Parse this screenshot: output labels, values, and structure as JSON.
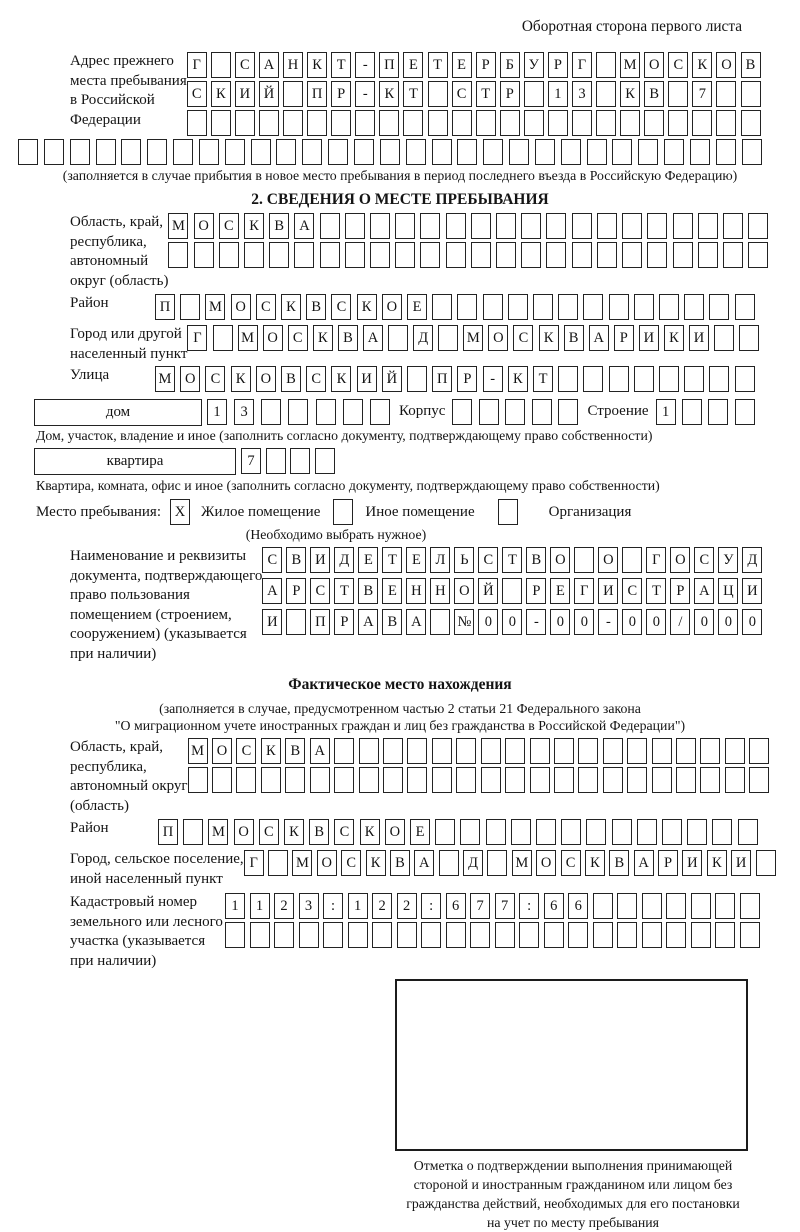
{
  "page": {
    "side_note": "Оборотная сторона первого листа"
  },
  "prev_address": {
    "label": "Адрес прежнего\nместа пребывания\nв Российской\nФедерации",
    "rows": [
      {
        "text": "Г САНКТ-ПЕТЕРБУРГ МОСКОВ",
        "len": 24
      },
      {
        "text": "СКИЙ ПР-КТ СТР 13 КВ 7",
        "len": 24
      },
      {
        "text": "",
        "len": 24
      },
      {
        "text": "",
        "len": 29
      }
    ],
    "note": "(заполняется в случае прибытия в новое место пребывания в период последнего въезда в Российскую Федерацию)"
  },
  "section2": {
    "title": "2. СВЕДЕНИЯ О МЕСТЕ ПРЕБЫВАНИЯ",
    "region": {
      "label": "Область, край,\nреспублика,\nавтономный\nокруг (область)",
      "rows": [
        {
          "text": "МОСКВА",
          "len": 24
        },
        {
          "text": "",
          "len": 24
        }
      ]
    },
    "district": {
      "label": "Район",
      "row": {
        "text": "П МОСКВСКОЕ",
        "len": 24
      }
    },
    "city": {
      "label": "Город или другой\nнаселенный пункт",
      "row": {
        "text": "Г МОСКВА Д МОСКВАРИКИ",
        "len": 23
      }
    },
    "street": {
      "label": "Улица",
      "row": {
        "text": "МОСКОВСКИЙ ПР-КТ",
        "len": 24
      }
    },
    "house": {
      "box_label": "дом",
      "cells": {
        "text": "13",
        "len": 7
      },
      "korpus_label": "Корпус",
      "korpus_cells": {
        "text": "",
        "len": 5
      },
      "stroenie_label": "Строение",
      "stroenie_cells": {
        "text": "1",
        "len": 4
      },
      "note": "Дом, участок, владение и иное (заполнить согласно документу, подтверждающему право собственности)"
    },
    "apartment": {
      "box_label": "квартира",
      "cells": {
        "text": "7",
        "len": 4
      },
      "note": "Квартира, комната, офис и иное (заполнить согласно документу, подтверждающему право собственности)"
    },
    "stay_type": {
      "label": "Место пребывания:",
      "options": [
        {
          "label": "Жилое помещение",
          "mark": "X"
        },
        {
          "label": "Иное помещение",
          "mark": ""
        },
        {
          "label": "Организация",
          "mark": ""
        }
      ],
      "note": "(Необходимо выбрать нужное)"
    },
    "document": {
      "label": "Наименование и реквизиты\nдокумента, подтверждающего\nправо пользования\nпомещением (строением,\nсооружением) (указывается\nпри наличии)",
      "rows": [
        {
          "text": "СВИДЕТЕЛЬСТВО О ГОСУД",
          "len": 21
        },
        {
          "text": "АРСТВЕННОЙ РЕГИСТРАЦИ",
          "len": 21
        },
        {
          "text": "И ПРАВА №00-00-00/000",
          "len": 21
        }
      ]
    }
  },
  "actual_location": {
    "title": "Фактическое место нахождения",
    "note_line1": "(заполняется в случае, предусмотренном частью 2 статьи 21 Федерального закона",
    "note_line2": "\"О миграционном учете иностранных граждан и лиц без гражданства в Российской Федерации\")",
    "region": {
      "label": "Область, край,\nреспублика,\nавтономный округ\n(область)",
      "rows": [
        {
          "text": "МОСКВА",
          "len": 24
        },
        {
          "text": "",
          "len": 24
        }
      ]
    },
    "district": {
      "label": "Район",
      "row": {
        "text": "П МОСКВСКОЕ",
        "len": 24
      }
    },
    "city": {
      "label": "Город, сельское поселение,\nиной населенный пункт",
      "row": {
        "text": "Г МОСКВА Д МОСКВАРИКИ",
        "len": 22
      }
    },
    "cadastre": {
      "label": "Кадастровый номер\nземельного или лесного\nучастка (указывается\nпри наличии)",
      "rows": [
        {
          "text": "1123:122:677:66",
          "len": 22
        },
        {
          "text": "",
          "len": 22
        }
      ]
    },
    "stamp_note": "Отметка о подтверждении выполнения принимающей\nстороной и иностранным гражданином или лицом без\nгражданства действий, необходимых для его постановки\nна учет по месту пребывания"
  }
}
